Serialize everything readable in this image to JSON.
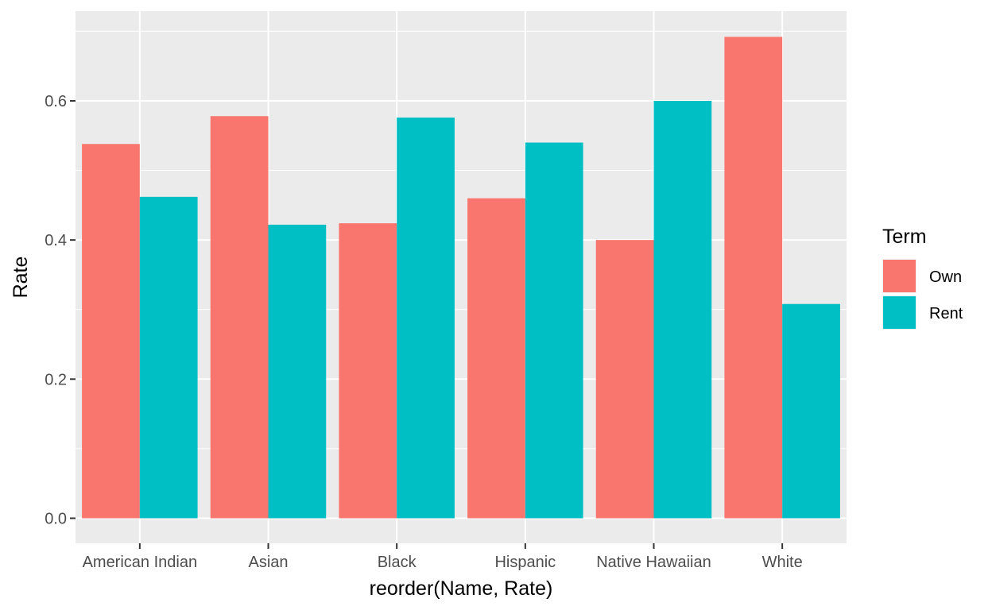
{
  "chart_data": {
    "type": "bar",
    "xlabel": "reorder(Name, Rate)",
    "ylabel": "Rate",
    "categories": [
      "American Indian",
      "Asian",
      "Black",
      "Hispanic",
      "Native Hawaiian",
      "White"
    ],
    "series": [
      {
        "name": "Own",
        "color": "#F8766D",
        "values": [
          0.538,
          0.578,
          0.424,
          0.46,
          0.4,
          0.692
        ]
      },
      {
        "name": "Rent",
        "color": "#00BFC4",
        "values": [
          0.462,
          0.422,
          0.576,
          0.54,
          0.6,
          0.308
        ]
      }
    ],
    "ylim": [
      -0.036,
      0.729
    ],
    "yticks": [
      0.0,
      0.2,
      0.4,
      0.6
    ],
    "ytick_labels": [
      "0.0",
      "0.2",
      "0.4",
      "0.6"
    ],
    "legend": {
      "title": "Term",
      "position": "right"
    },
    "grid": true,
    "panel_background": "#EBEBEB"
  }
}
